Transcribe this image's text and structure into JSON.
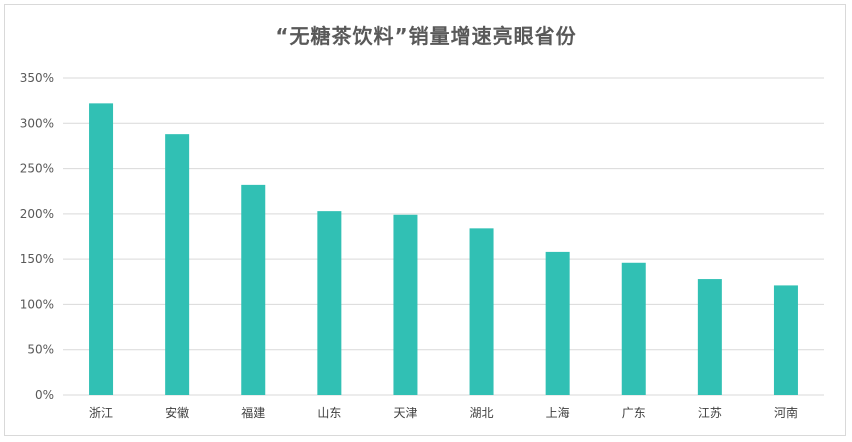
{
  "chart_data": {
    "type": "bar",
    "title": "“无糖茶饮料”销量增速亮眼省份",
    "categories": [
      "浙江",
      "安徽",
      "福建",
      "山东",
      "天津",
      "湖北",
      "上海",
      "广东",
      "江苏",
      "河南"
    ],
    "values": [
      322,
      288,
      232,
      203,
      199,
      184,
      158,
      146,
      128,
      121
    ],
    "value_unit": "%",
    "ylim": [
      0,
      350
    ],
    "yticks": [
      0,
      50,
      100,
      150,
      200,
      250,
      300,
      350
    ],
    "ytick_labels": [
      "0%",
      "50%",
      "100%",
      "150%",
      "200%",
      "250%",
      "300%",
      "350%"
    ],
    "grid": true,
    "bar_color": "#31C0B4",
    "grid_color": "#D9D9D9"
  }
}
